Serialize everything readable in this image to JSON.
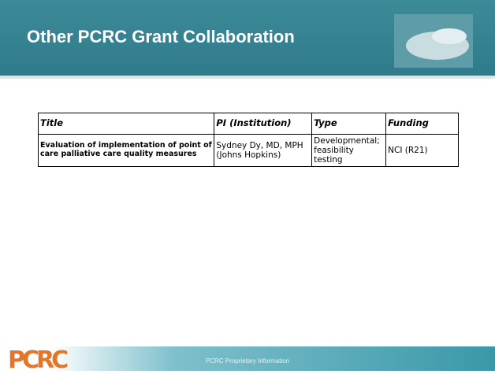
{
  "header": {
    "title": "Other PCRC Grant Collaboration"
  },
  "table": {
    "columns": [
      "Title",
      "PI  (Institution)",
      "Type",
      "Funding"
    ],
    "rows": [
      [
        "Evaluation of implementation of point of care palliative care quality measures",
        "Sydney Dy, MD, MPH (Johns Hopkins)",
        "Developmental; feasibility testing",
        "NCI (R21)"
      ]
    ]
  },
  "footer": {
    "logo": "PCRC",
    "text": "PCRC Proprietary Information"
  }
}
